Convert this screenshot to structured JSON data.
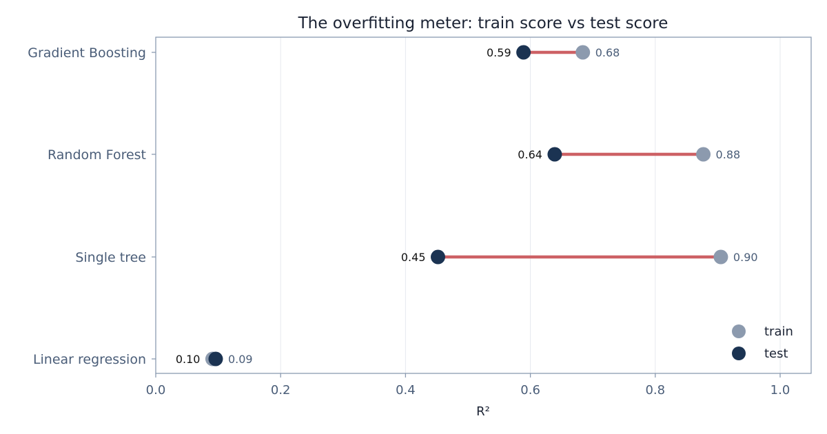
{
  "chart_data": {
    "type": "dumbbell",
    "title": "The overfitting meter: train score vs test score",
    "xlabel": "R²",
    "ylabel": "",
    "xlim": [
      0.0,
      1.05
    ],
    "x_ticks": [
      "0.0",
      "0.2",
      "0.4",
      "0.6",
      "0.8",
      "1.0"
    ],
    "x_tick_values": [
      0.0,
      0.2,
      0.4,
      0.6,
      0.8,
      1.0
    ],
    "categories": [
      "Gradient Boosting",
      "Random Forest",
      "Single tree",
      "Linear regression"
    ],
    "series": [
      {
        "name": "train",
        "values": [
          0.684,
          0.877,
          0.905,
          0.091
        ],
        "labels": [
          "0.68",
          "0.88",
          "0.90",
          "0.09"
        ]
      },
      {
        "name": "test",
        "values": [
          0.589,
          0.639,
          0.452,
          0.096
        ],
        "labels": [
          "0.59",
          "0.64",
          "0.45",
          "0.10"
        ]
      }
    ],
    "grid": "vertical",
    "legend": "bottom-right",
    "colors": {
      "train": "#8c9aae",
      "test": "#1b3352",
      "connector": "#cd6165",
      "frame": "#8a9ab0",
      "grid": "#e6e9ee"
    }
  }
}
